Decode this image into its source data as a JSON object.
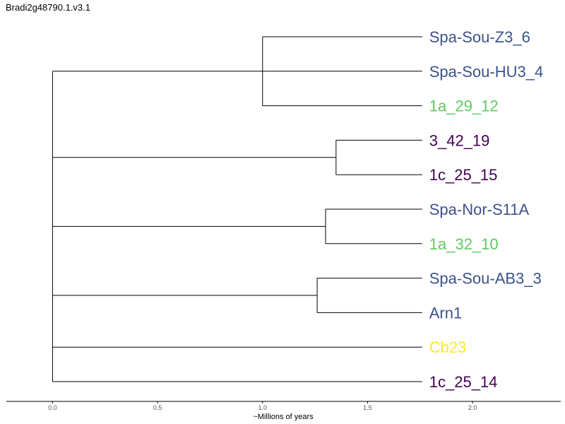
{
  "title": "Bradi2g48790.1.v3.1",
  "axis": {
    "label": "~Millions of years",
    "min": -0.22,
    "max": 2.42,
    "ticks": [
      "0.0",
      "0.5",
      "1.0",
      "1.5",
      "2.0"
    ],
    "tick_values": [
      0.0,
      0.5,
      1.0,
      1.5,
      2.0
    ]
  },
  "colors": {
    "purple": "#440154",
    "blue": "#3b528b",
    "green": "#5ec962",
    "yellow": "#fde725"
  },
  "tree": {
    "tip_depth": 1.76,
    "leaves": [
      {
        "name": "Spa-Sou-Z3_6",
        "color": "#3b528b"
      },
      {
        "name": "Spa-Sou-HU3_4",
        "color": "#3b528b"
      },
      {
        "name": "1a_29_12",
        "color": "#5ec962"
      },
      {
        "name": "3_42_19",
        "color": "#440154"
      },
      {
        "name": "1c_25_15",
        "color": "#440154"
      },
      {
        "name": "Spa-Nor-S11A",
        "color": "#3b528b"
      },
      {
        "name": "1a_32_10",
        "color": "#5ec962"
      },
      {
        "name": "Spa-Sou-AB3_3",
        "color": "#3b528b"
      },
      {
        "name": "Arn1",
        "color": "#3b528b"
      },
      {
        "name": "Cb23",
        "color": "#fde725"
      },
      {
        "name": "1c_25_14",
        "color": "#440154"
      }
    ],
    "clades": [
      {
        "depth": 1.0,
        "leaves": [
          0,
          1,
          2
        ]
      },
      {
        "depth": 1.35,
        "leaves": [
          3,
          4
        ]
      },
      {
        "depth": 1.3,
        "leaves": [
          5,
          6
        ]
      },
      {
        "depth": 1.26,
        "leaves": [
          7,
          8
        ]
      },
      {
        "depth": null,
        "leaves": [
          9
        ]
      },
      {
        "depth": null,
        "leaves": [
          10
        ]
      }
    ]
  }
}
